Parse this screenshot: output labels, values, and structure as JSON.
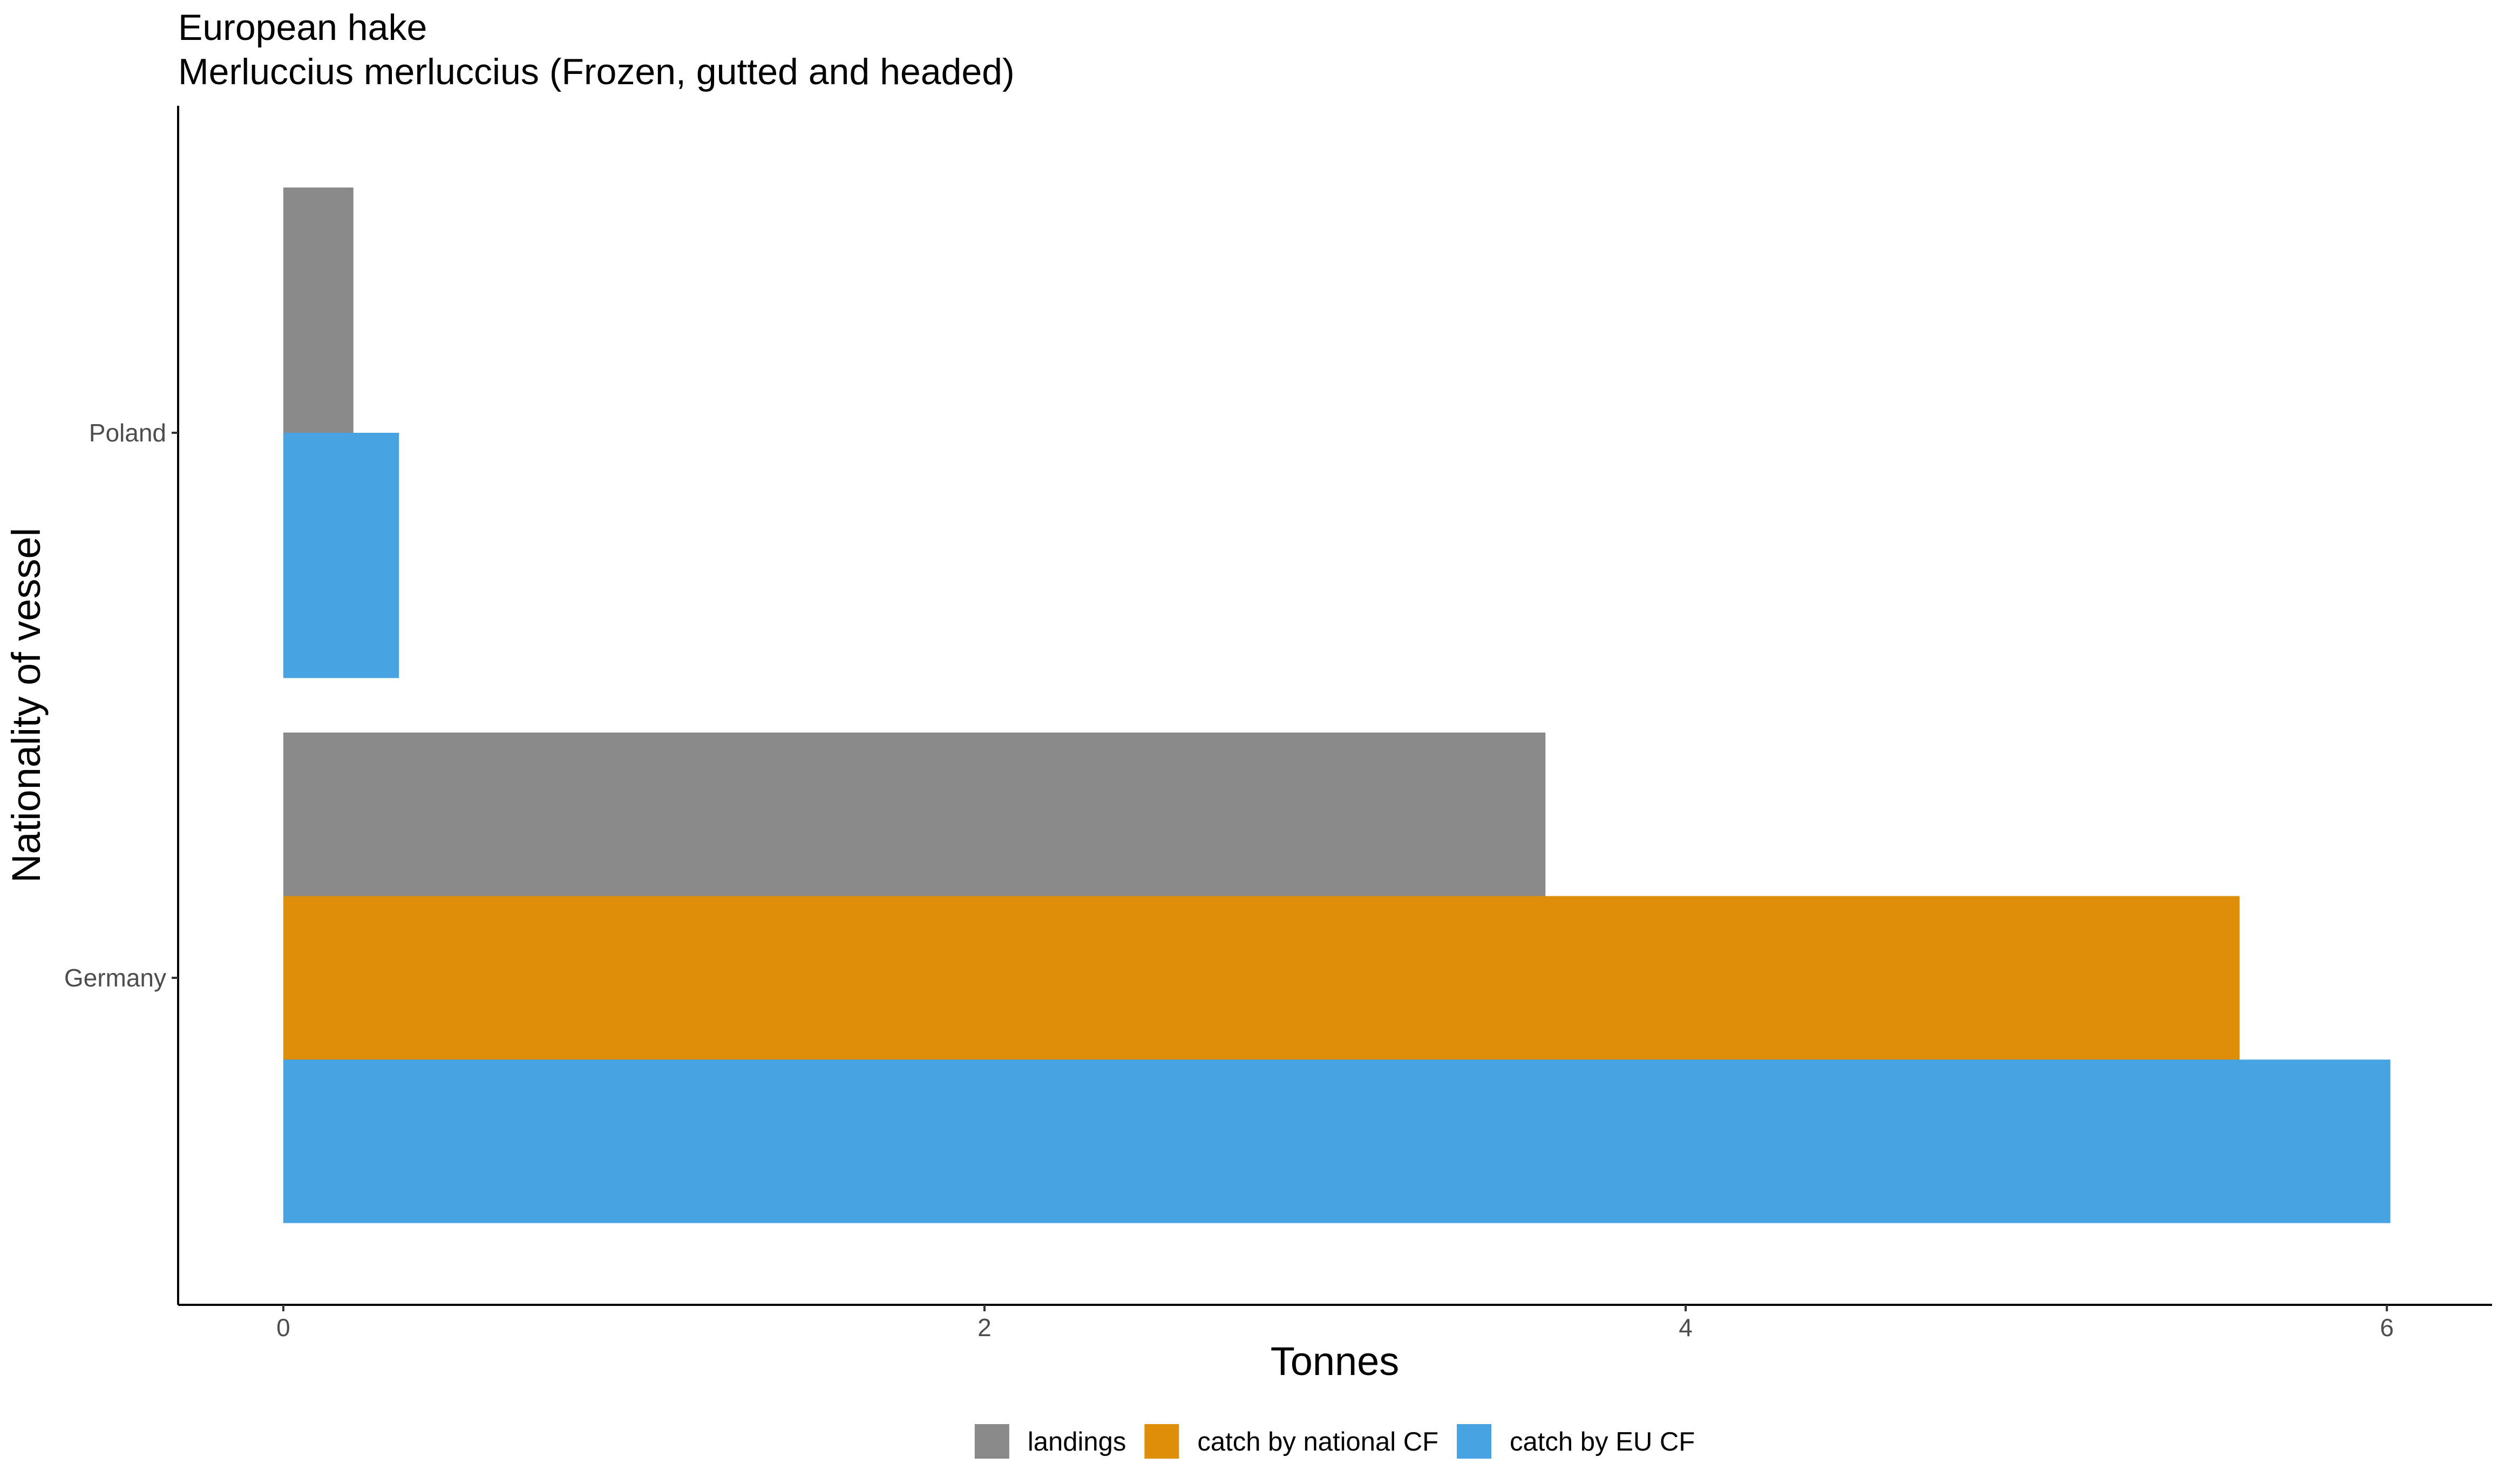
{
  "chart_data": {
    "type": "bar",
    "orientation": "horizontal",
    "title": "European hake",
    "subtitle": "Merluccius merluccius (Frozen, gutted and headed)",
    "xlabel": "Tonnes",
    "ylabel": "Nationality of vessel",
    "categories": [
      "Germany",
      "Poland"
    ],
    "x_ticks": [
      "0",
      "2",
      "4",
      "6"
    ],
    "xlim": [
      -0.3,
      6.3
    ],
    "grid": false,
    "legend_position": "bottom",
    "series": [
      {
        "name": "landings",
        "color": "#898989",
        "values": [
          3.6,
          0.2
        ]
      },
      {
        "name": "catch by national CF",
        "color": "#DF8E09",
        "values": [
          5.58,
          null
        ]
      },
      {
        "name": "catch by EU CF",
        "color": "#47A3E2",
        "values": [
          6.01,
          0.33
        ]
      }
    ]
  }
}
